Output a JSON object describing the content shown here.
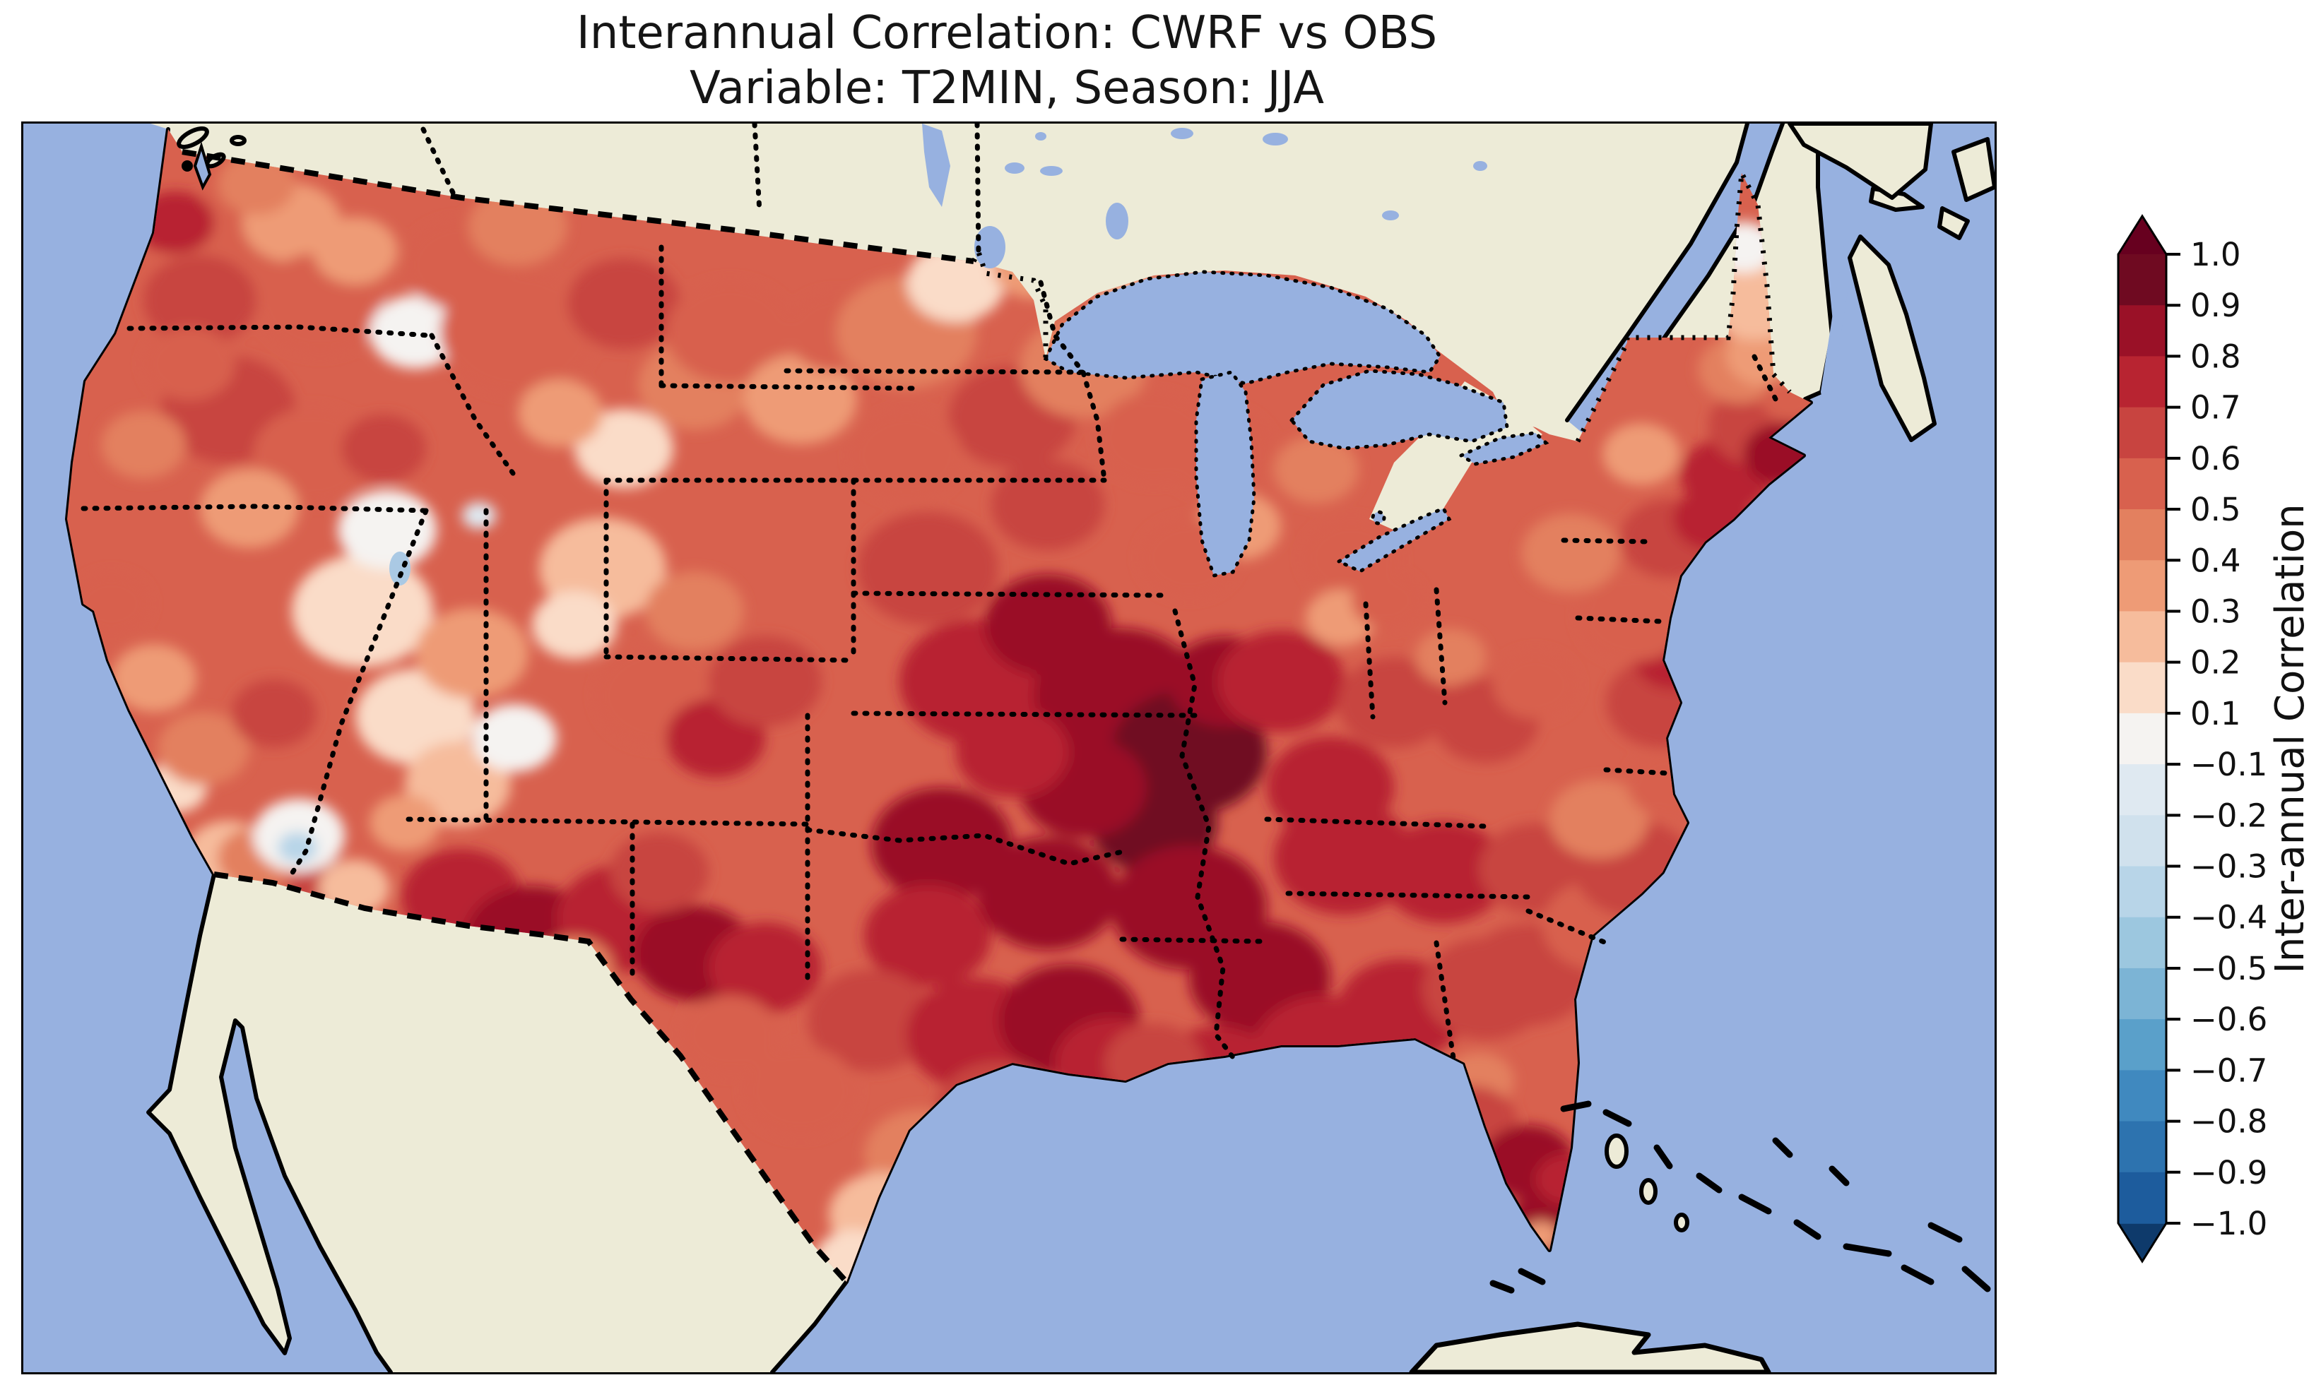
{
  "title": {
    "line1": "Interannual Correlation: CWRF vs OBS",
    "line2": "Variable: T2MIN, Season: JJA"
  },
  "map": {
    "ocean_color": "#97b1e0",
    "land_color": "#edebd7",
    "coast_color": "#000000",
    "frame_color": "#000000",
    "visible_regions": [
      "Continental United States",
      "Canada",
      "Mexico",
      "Baja California",
      "Great Lakes",
      "Cuba",
      "Bahamas",
      "Nova Scotia"
    ]
  },
  "colorbar": {
    "label": "Inter-annual Correlation",
    "extend": "both",
    "tick_labels": [
      "1.0",
      "0.9",
      "0.8",
      "0.7",
      "0.6",
      "0.5",
      "0.4",
      "0.3",
      "0.2",
      "0.1",
      "−0.1",
      "−0.2",
      "−0.3",
      "−0.4",
      "−0.5",
      "−0.6",
      "−0.7",
      "−0.8",
      "−0.9",
      "−1.0"
    ],
    "segment_colors_top_to_bottom": [
      "#6f0a21",
      "#9a1127",
      "#b82431",
      "#c84440",
      "#d8614e",
      "#e3805f",
      "#ee9b76",
      "#f6bc9c",
      "#fadcc8",
      "#f5f3f1",
      "#dfe9f1",
      "#d0e1ed",
      "#b8d5e8",
      "#9cc7df",
      "#7cb4d5",
      "#5aa0ca",
      "#4089bf",
      "#2d73af",
      "#1d5c9d"
    ],
    "extend_top_color": "#67001f",
    "extend_bottom_color": "#0e3a6b"
  },
  "chart_data": {
    "type": "heatmap",
    "subtype": "filled-contour-map",
    "title": "Interannual Correlation: CWRF vs OBS",
    "subtitle": "Variable: T2MIN, Season: JJA",
    "variable": "T2MIN",
    "season": "JJA",
    "comparison": [
      "CWRF",
      "OBS"
    ],
    "colormap": "RdBu_r",
    "value_range": [
      -1.0,
      1.0
    ],
    "levels": [
      -1.0,
      -0.9,
      -0.8,
      -0.7,
      -0.6,
      -0.5,
      -0.4,
      -0.3,
      -0.2,
      -0.1,
      0.1,
      0.2,
      0.3,
      0.4,
      0.5,
      0.6,
      0.7,
      0.8,
      0.9,
      1.0
    ],
    "boundaries_top_to_bottom": [
      1.0,
      0.9,
      0.8,
      0.7,
      0.6,
      0.5,
      0.4,
      0.3,
      0.2,
      0.1,
      -0.1,
      -0.2,
      -0.3,
      -0.4,
      -0.5,
      -0.6,
      -0.7,
      -0.8,
      -0.9,
      -1.0
    ],
    "regional_values_approx": [
      {
        "region": "Pacific Northwest (WA/OR)",
        "corr": 0.5
      },
      {
        "region": "California coast / Central Valley",
        "corr": 0.3
      },
      {
        "region": "Great Basin (NV/UT)",
        "corr": 0.15
      },
      {
        "region": "Salton Sea area (S. California)",
        "corr": -0.35
      },
      {
        "region": "Arizona / New Mexico",
        "corr": 0.8
      },
      {
        "region": "Northern Rockies (MT/ID/WY)",
        "corr": 0.4
      },
      {
        "region": "Northern Plains (Dakotas/MN)",
        "corr": 0.45
      },
      {
        "region": "Central Plains (NE/KS/OK)",
        "corr": 0.8
      },
      {
        "region": "Midwest / lower Missouri-Mississippi (IA/MO/IL/AR)",
        "corr": 0.9
      },
      {
        "region": "Texas central/east",
        "corr": 0.75
      },
      {
        "region": "South Texas",
        "corr": 0.2
      },
      {
        "region": "Gulf Coast states (LA/MS/AL/GA)",
        "corr": 0.7
      },
      {
        "region": "Florida",
        "corr": 0.85
      },
      {
        "region": "Southeast Atlantic coast",
        "corr": 0.6
      },
      {
        "region": "Ohio Valley / Great Lakes",
        "corr": 0.55
      },
      {
        "region": "Mid-Atlantic / New England coast",
        "corr": 0.65
      },
      {
        "region": "Northern Maine",
        "corr": 0.2
      }
    ],
    "field_spots_xyrv": [
      [
        300,
        180,
        110,
        0.55
      ],
      [
        380,
        140,
        70,
        0.35
      ],
      [
        250,
        250,
        80,
        0.65
      ],
      [
        420,
        255,
        90,
        0.5
      ],
      [
        555,
        295,
        65,
        0.08
      ],
      [
        470,
        180,
        60,
        0.3
      ],
      [
        330,
        85,
        55,
        0.45
      ],
      [
        620,
        200,
        80,
        0.55
      ],
      [
        700,
        145,
        70,
        0.4
      ],
      [
        215,
        140,
        55,
        0.7
      ],
      [
        290,
        405,
        95,
        0.65
      ],
      [
        170,
        455,
        60,
        0.4
      ],
      [
        410,
        470,
        85,
        0.5
      ],
      [
        320,
        545,
        70,
        0.35
      ],
      [
        510,
        460,
        60,
        0.6
      ],
      [
        235,
        340,
        65,
        0.55
      ],
      [
        125,
        680,
        55,
        0.5
      ],
      [
        185,
        785,
        60,
        0.3
      ],
      [
        215,
        940,
        45,
        0.12
      ],
      [
        255,
        885,
        65,
        0.4
      ],
      [
        355,
        835,
        60,
        0.65
      ],
      [
        290,
        1035,
        60,
        0.25
      ],
      [
        330,
        1040,
        55,
        0.45
      ],
      [
        430,
        1085,
        55,
        0.6
      ],
      [
        390,
        1008,
        65,
        0.05
      ],
      [
        388,
        1025,
        28,
        -0.35
      ],
      [
        468,
        1082,
        50,
        0.2
      ],
      [
        480,
        690,
        100,
        0.15
      ],
      [
        555,
        840,
        85,
        0.1
      ],
      [
        515,
        575,
        70,
        0.05
      ],
      [
        635,
        750,
        80,
        0.3
      ],
      [
        615,
        935,
        75,
        0.25
      ],
      [
        695,
        870,
        60,
        0.08
      ],
      [
        540,
        990,
        50,
        0.3
      ],
      [
        645,
        555,
        24,
        -0.2
      ],
      [
        620,
        1095,
        85,
        0.75
      ],
      [
        720,
        1155,
        95,
        0.85
      ],
      [
        850,
        1125,
        95,
        0.7
      ],
      [
        950,
        1175,
        85,
        0.8
      ],
      [
        1050,
        1195,
        80,
        0.7
      ],
      [
        780,
        1195,
        55,
        0.4
      ],
      [
        900,
        1060,
        70,
        0.6
      ],
      [
        900,
        810,
        90,
        0.5
      ],
      [
        980,
        870,
        70,
        0.75
      ],
      [
        820,
        630,
        90,
        0.25
      ],
      [
        780,
        710,
        60,
        0.1
      ],
      [
        950,
        690,
        70,
        0.45
      ],
      [
        1050,
        790,
        80,
        0.6
      ],
      [
        700,
        295,
        110,
        0.5
      ],
      [
        850,
        255,
        80,
        0.6
      ],
      [
        950,
        370,
        80,
        0.45
      ],
      [
        850,
        460,
        70,
        0.12
      ],
      [
        1000,
        295,
        90,
        0.55
      ],
      [
        1100,
        390,
        80,
        0.35
      ],
      [
        760,
        410,
        60,
        0.3
      ],
      [
        1150,
        295,
        70,
        0.5
      ],
      [
        1250,
        295,
        100,
        0.45
      ],
      [
        1320,
        225,
        70,
        0.1
      ],
      [
        1400,
        415,
        90,
        0.65
      ],
      [
        1250,
        470,
        80,
        0.5
      ],
      [
        1500,
        345,
        90,
        0.45
      ],
      [
        1580,
        275,
        70,
        0.25
      ],
      [
        1600,
        445,
        80,
        0.55
      ],
      [
        1450,
        540,
        80,
        0.6
      ],
      [
        1430,
        200,
        60,
        0.3
      ],
      [
        1280,
        630,
        100,
        0.65
      ],
      [
        1350,
        790,
        110,
        0.75
      ],
      [
        1450,
        710,
        90,
        0.85
      ],
      [
        1550,
        810,
        120,
        0.85
      ],
      [
        1650,
        890,
        110,
        0.9
      ],
      [
        1600,
        990,
        90,
        0.95
      ],
      [
        1500,
        940,
        90,
        0.85
      ],
      [
        1400,
        890,
        80,
        0.75
      ],
      [
        1700,
        790,
        80,
        0.8
      ],
      [
        1300,
        1020,
        100,
        0.8
      ],
      [
        1280,
        1150,
        90,
        0.7
      ],
      [
        1450,
        1090,
        100,
        0.85
      ],
      [
        1650,
        1110,
        110,
        0.85
      ],
      [
        1750,
        1210,
        100,
        0.8
      ],
      [
        1200,
        1270,
        90,
        0.6
      ],
      [
        1350,
        1290,
        100,
        0.75
      ],
      [
        1480,
        1270,
        100,
        0.85
      ],
      [
        1380,
        1400,
        90,
        0.65
      ],
      [
        1270,
        1460,
        80,
        0.4
      ],
      [
        1215,
        1545,
        75,
        0.25
      ],
      [
        1175,
        1610,
        55,
        0.1
      ],
      [
        1100,
        1370,
        80,
        0.55
      ],
      [
        1000,
        1290,
        70,
        0.5
      ],
      [
        1540,
        1330,
        80,
        0.7
      ],
      [
        1690,
        465,
        80,
        0.55
      ],
      [
        1720,
        570,
        60,
        0.3
      ],
      [
        1650,
        615,
        70,
        0.5
      ],
      [
        1830,
        490,
        60,
        0.45
      ],
      [
        1880,
        615,
        70,
        0.55
      ],
      [
        1865,
        700,
        50,
        0.35
      ],
      [
        1930,
        675,
        50,
        0.5
      ],
      [
        1780,
        790,
        90,
        0.7
      ],
      [
        1850,
        940,
        90,
        0.75
      ],
      [
        1940,
        820,
        80,
        0.6
      ],
      [
        2020,
        755,
        50,
        0.4
      ],
      [
        2070,
        845,
        75,
        0.6
      ],
      [
        2140,
        795,
        60,
        0.5
      ],
      [
        1870,
        1040,
        100,
        0.75
      ],
      [
        2010,
        1060,
        90,
        0.7
      ],
      [
        2140,
        1055,
        80,
        0.6
      ],
      [
        1690,
        1350,
        90,
        0.7
      ],
      [
        1840,
        1315,
        100,
        0.75
      ],
      [
        1950,
        1255,
        90,
        0.7
      ],
      [
        2070,
        1225,
        90,
        0.65
      ],
      [
        2060,
        1355,
        50,
        0.45
      ],
      [
        1600,
        1330,
        70,
        0.65
      ],
      [
        2050,
        1415,
        65,
        0.6
      ],
      [
        2130,
        1470,
        65,
        0.8
      ],
      [
        2165,
        1555,
        60,
        0.85
      ],
      [
        2148,
        1575,
        26,
        0.35
      ],
      [
        2185,
        1495,
        45,
        0.75
      ],
      [
        2130,
        1205,
        90,
        0.65
      ],
      [
        2230,
        1135,
        80,
        0.55
      ],
      [
        2280,
        1055,
        85,
        0.6
      ],
      [
        2230,
        985,
        70,
        0.45
      ],
      [
        2330,
        935,
        60,
        0.55
      ],
      [
        2320,
        820,
        80,
        0.6
      ],
      [
        2335,
        757,
        55,
        0.7
      ],
      [
        2280,
        698,
        80,
        0.55
      ],
      [
        2190,
        608,
        70,
        0.4
      ],
      [
        2330,
        588,
        70,
        0.65
      ],
      [
        2410,
        498,
        65,
        0.75
      ],
      [
        2290,
        468,
        55,
        0.3
      ],
      [
        2455,
        428,
        70,
        0.6
      ],
      [
        2490,
        468,
        55,
        0.8
      ],
      [
        2430,
        348,
        60,
        0.45
      ],
      [
        2465,
        328,
        55,
        0.3
      ],
      [
        2450,
        250,
        70,
        0.22
      ],
      [
        2435,
        175,
        45,
        0.08
      ],
      [
        2390,
        560,
        55,
        0.75
      ],
      [
        2500,
        390,
        40,
        0.5
      ]
    ]
  }
}
